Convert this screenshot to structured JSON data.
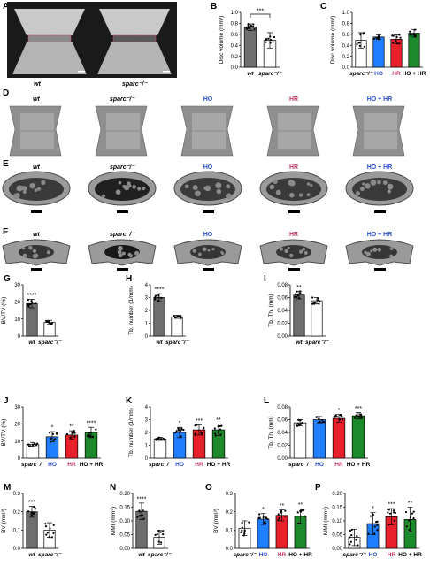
{
  "colors": {
    "wt": "#6e6e6e",
    "sparc": "#ffffff",
    "HO": "#1f7fff",
    "HR": "#e8202a",
    "HOHR": "#1c8a2a",
    "text_HO": "#2b4fd6",
    "text_HR": "#c43a6a",
    "text_plus": "#9b5a2a"
  },
  "images": {
    "row_A": {
      "panel": "A",
      "labels": [
        "wt",
        "sparc⁻/⁻"
      ]
    },
    "row_D": {
      "panel": "D",
      "labels": [
        "wt",
        "sparc⁻/⁻",
        "HO",
        "HR",
        "HO + HR"
      ]
    },
    "row_E": {
      "panel": "E",
      "labels": [
        "wt",
        "sparc⁻/⁻",
        "HO",
        "HR",
        "HO + HR"
      ]
    },
    "row_F": {
      "panel": "F",
      "labels": [
        "wt",
        "sparc⁻/⁻",
        "HO",
        "HR",
        "HO + HR"
      ]
    }
  },
  "chart_data": [
    {
      "panel": "B",
      "type": "bar",
      "categories": [
        "wt",
        "sparc⁻/⁻"
      ],
      "values": [
        0.73,
        0.49
      ],
      "errors": [
        0.06,
        0.14
      ],
      "ylabel": "Disc volume (mm³)",
      "ylim": [
        0,
        1.0
      ],
      "yticks": [
        "0.0",
        "0.2",
        "0.4",
        "0.6",
        "0.8",
        "1.0"
      ],
      "stars": [
        {
          "between": [
            0,
            1
          ],
          "text": "***"
        }
      ]
    },
    {
      "panel": "C",
      "type": "bar",
      "categories": [
        "sparc⁻/⁻",
        "HO",
        "HR",
        "HO + HR"
      ],
      "values": [
        0.49,
        0.55,
        0.51,
        0.62
      ],
      "errors": [
        0.14,
        0.04,
        0.08,
        0.07
      ],
      "ylabel": "Disc volume (mm³)",
      "ylim": [
        0,
        1.0
      ],
      "yticks": [
        "0.0",
        "0.2",
        "0.4",
        "0.6",
        "0.8",
        "1.0"
      ],
      "stars": []
    },
    {
      "panel": "G",
      "type": "bar",
      "categories": [
        "wt",
        "sparc⁻/⁻"
      ],
      "values": [
        19,
        8
      ],
      "errors": [
        2.5,
        1.2
      ],
      "ylabel": "BV/TV (%)",
      "ylim": [
        0,
        30
      ],
      "yticks": [
        "0",
        "10",
        "20",
        "30"
      ],
      "stars": [
        {
          "idx": 0,
          "text": "****"
        }
      ]
    },
    {
      "panel": "H",
      "type": "bar",
      "categories": [
        "wt",
        "sparc⁻/⁻"
      ],
      "values": [
        3.0,
        1.5
      ],
      "errors": [
        0.3,
        0.12
      ],
      "ylabel": "Tb. number (1/mm)",
      "ylim": [
        0,
        4
      ],
      "yticks": [
        "0",
        "1",
        "2",
        "3",
        "4"
      ],
      "stars": [
        {
          "idx": 0,
          "text": "****"
        }
      ]
    },
    {
      "panel": "I",
      "type": "bar",
      "categories": [
        "wt",
        "sparc⁻/⁻"
      ],
      "values": [
        0.064,
        0.055
      ],
      "errors": [
        0.006,
        0.005
      ],
      "ylabel": "Tb. Th. (mm)",
      "ylim": [
        0,
        0.08
      ],
      "yticks": [
        "0.00",
        "0.02",
        "0.04",
        "0.06",
        "0.08"
      ],
      "stars": [
        {
          "idx": 0,
          "text": "**"
        }
      ]
    },
    {
      "panel": "J",
      "type": "bar",
      "categories": [
        "sparc⁻/⁻",
        "HO",
        "HR",
        "HO + HR"
      ],
      "values": [
        8,
        12.5,
        13.5,
        15
      ],
      "errors": [
        1.2,
        3,
        2.5,
        3
      ],
      "ylabel": "BV/TV (%)",
      "ylim": [
        0,
        30
      ],
      "yticks": [
        "0",
        "10",
        "20",
        "30"
      ],
      "stars": [
        {
          "idx": 1,
          "text": "*"
        },
        {
          "idx": 2,
          "text": "**"
        },
        {
          "idx": 3,
          "text": "****"
        }
      ]
    },
    {
      "panel": "K",
      "type": "bar",
      "categories": [
        "sparc⁻/⁻",
        "HO",
        "HR",
        "HO + HR"
      ],
      "values": [
        1.5,
        2.0,
        2.2,
        2.2
      ],
      "errors": [
        0.12,
        0.4,
        0.4,
        0.45
      ],
      "ylabel": "Tb. number (1/mm)",
      "ylim": [
        0,
        4
      ],
      "yticks": [
        "0",
        "1",
        "2",
        "3",
        "4"
      ],
      "stars": [
        {
          "idx": 1,
          "text": "*"
        },
        {
          "idx": 2,
          "text": "***"
        },
        {
          "idx": 3,
          "text": "**"
        }
      ]
    },
    {
      "panel": "L",
      "type": "bar",
      "categories": [
        "sparc⁻/⁻",
        "HO",
        "HR",
        "HO + HR"
      ],
      "values": [
        0.055,
        0.06,
        0.062,
        0.066
      ],
      "errors": [
        0.005,
        0.005,
        0.006,
        0.005
      ],
      "ylabel": "Tb. Th. (mm)",
      "ylim": [
        0,
        0.08
      ],
      "yticks": [
        "0.00",
        "0.02",
        "0.04",
        "0.06",
        "0.08"
      ],
      "stars": [
        {
          "idx": 2,
          "text": "*"
        },
        {
          "idx": 3,
          "text": "***"
        }
      ]
    },
    {
      "panel": "M",
      "type": "bar",
      "categories": [
        "wt",
        "sparc⁻/⁻"
      ],
      "values": [
        0.2,
        0.1
      ],
      "errors": [
        0.03,
        0.04
      ],
      "ylabel": "BV (mm³)",
      "ylim": [
        0,
        0.3
      ],
      "yticks": [
        "0.0",
        "0.1",
        "0.2",
        "0.3"
      ],
      "stars": [
        {
          "idx": 0,
          "text": "***"
        }
      ]
    },
    {
      "panel": "N",
      "type": "bar",
      "categories": [
        "wt",
        "sparc⁻/⁻"
      ],
      "values": [
        0.135,
        0.04
      ],
      "errors": [
        0.03,
        0.025
      ],
      "ylabel": "MMI (mm⁴)",
      "ylim": [
        0,
        0.2
      ],
      "yticks": [
        "0.00",
        "0.05",
        "0.10",
        "0.15",
        "0.20"
      ],
      "stars": [
        {
          "idx": 0,
          "text": "****"
        }
      ]
    },
    {
      "panel": "O",
      "type": "bar",
      "categories": [
        "sparc⁻/⁻",
        "HO",
        "HR",
        "HO + HR"
      ],
      "values": [
        0.11,
        0.16,
        0.18,
        0.175
      ],
      "errors": [
        0.04,
        0.03,
        0.03,
        0.04
      ],
      "ylabel": "BV (mm³)",
      "ylim": [
        0,
        0.3
      ],
      "yticks": [
        "0.0",
        "0.1",
        "0.2",
        "0.3"
      ],
      "stars": [
        {
          "idx": 1,
          "text": "*"
        },
        {
          "idx": 2,
          "text": "**"
        },
        {
          "idx": 3,
          "text": "**"
        }
      ]
    },
    {
      "panel": "P",
      "type": "bar",
      "categories": [
        "sparc⁻/⁻",
        "HO",
        "HR",
        "HO + HR"
      ],
      "values": [
        0.04,
        0.09,
        0.115,
        0.105
      ],
      "errors": [
        0.03,
        0.04,
        0.03,
        0.045
      ],
      "ylabel": "MMI (mm⁴)",
      "ylim": [
        0,
        0.2
      ],
      "yticks": [
        "0.00",
        "0.05",
        "0.10",
        "0.15",
        "0.20"
      ],
      "stars": [
        {
          "idx": 1,
          "text": "*"
        },
        {
          "idx": 2,
          "text": "***"
        },
        {
          "idx": 3,
          "text": "**"
        }
      ]
    }
  ]
}
